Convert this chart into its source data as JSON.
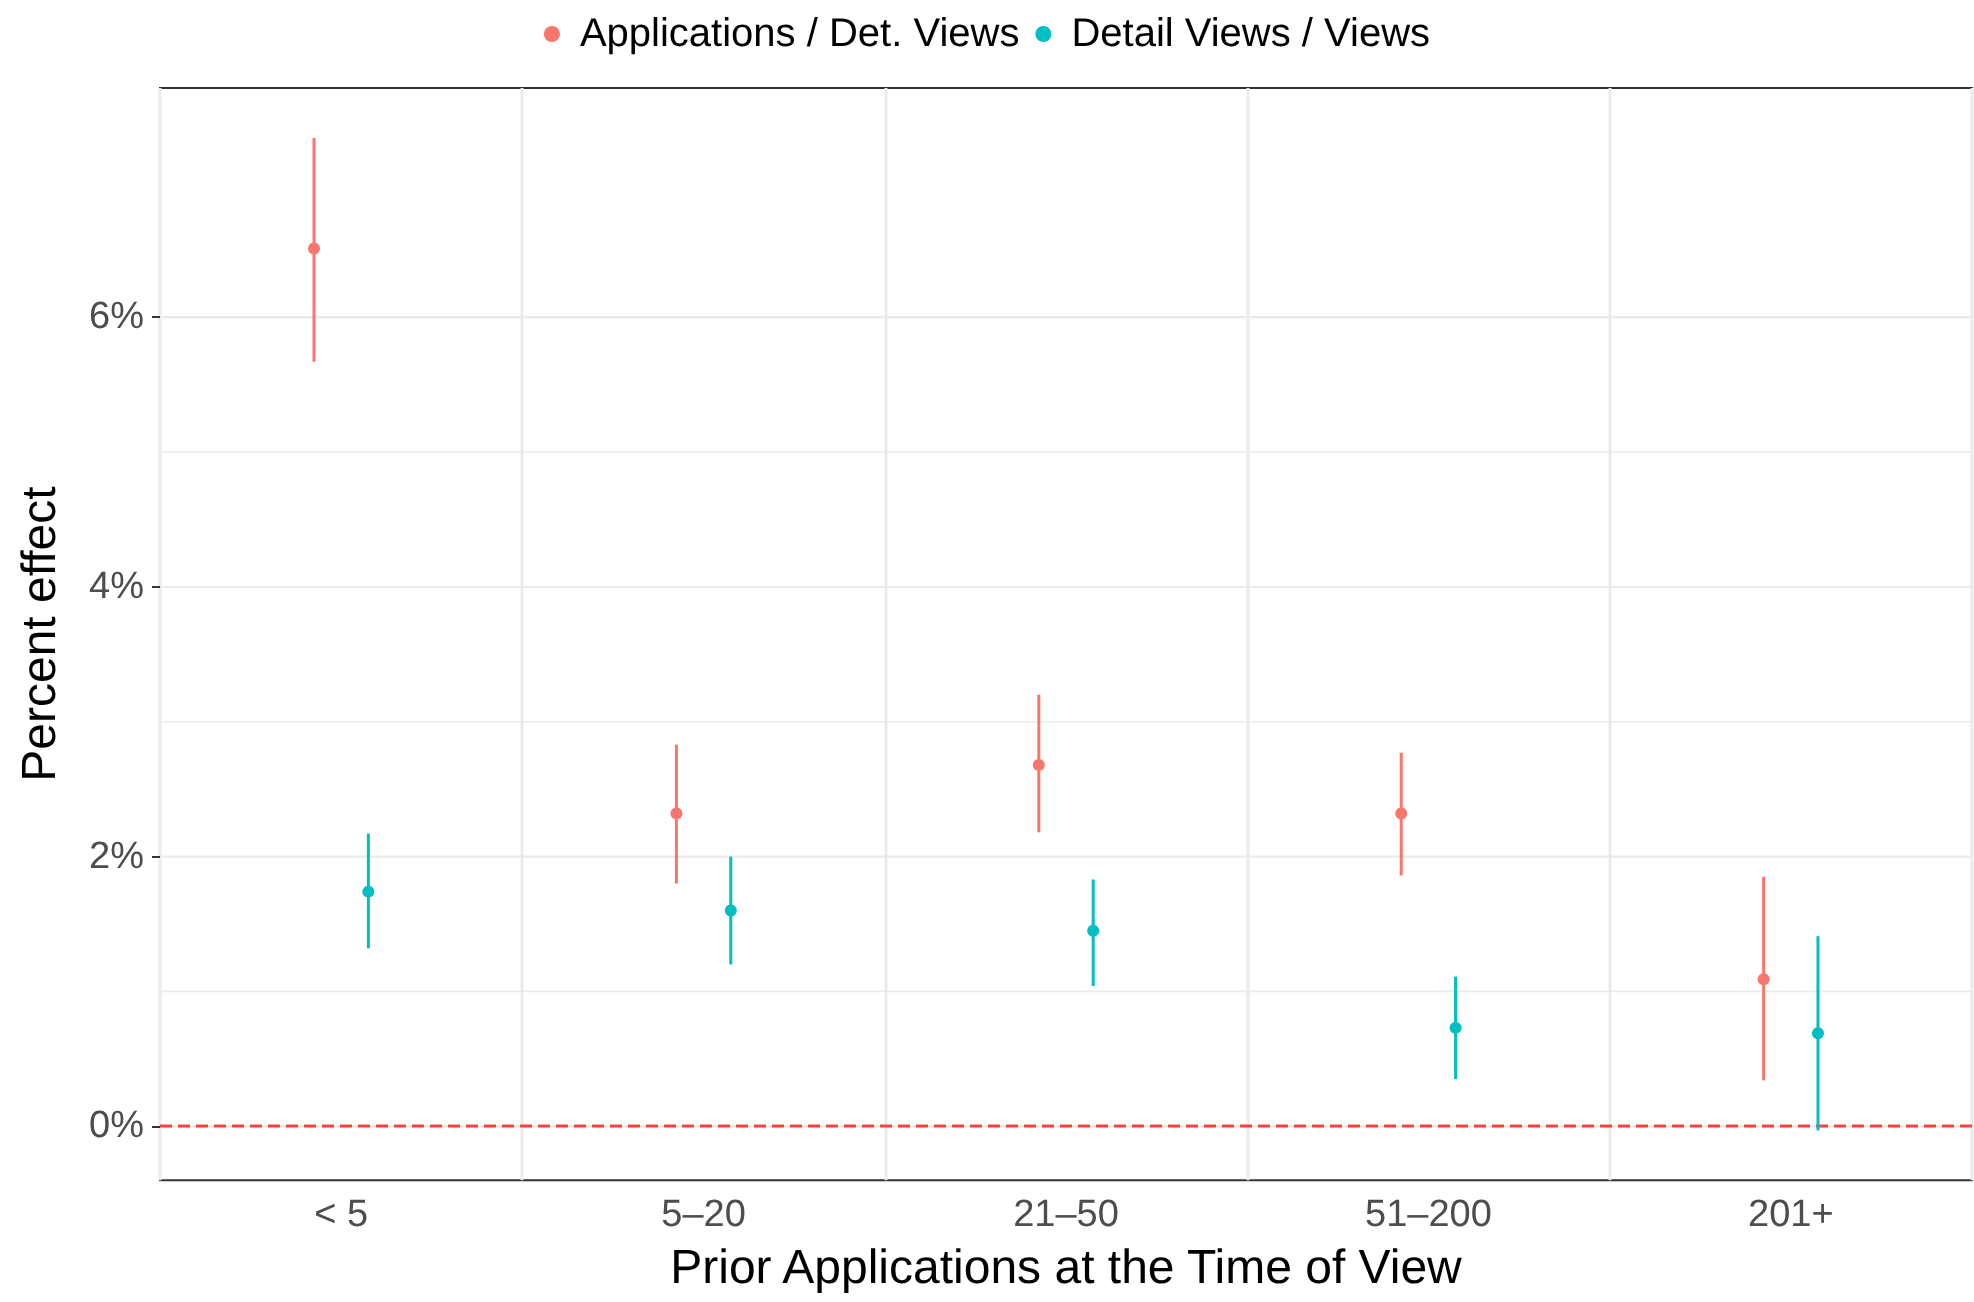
{
  "chart_data": {
    "type": "scatter",
    "xlabel": "Prior Applications at the Time of View",
    "ylabel": "Percent effect",
    "categories": [
      "< 5",
      "5–20",
      "21–50",
      "51–200",
      "201+"
    ],
    "series": [
      {
        "name": "Applications / Det. Views",
        "color": "#f8766d",
        "values": [
          6.51,
          2.32,
          2.68,
          2.32,
          1.09
        ],
        "errors": [
          [
            5.67,
            7.33
          ],
          [
            1.8,
            2.83
          ],
          [
            2.18,
            3.2
          ],
          [
            1.86,
            2.77
          ],
          [
            0.34,
            1.85
          ]
        ]
      },
      {
        "name": "Detail Views / Views",
        "color": "#00bfc4",
        "values": [
          1.74,
          1.6,
          1.45,
          0.73,
          0.69
        ],
        "errors": [
          [
            1.32,
            2.17
          ],
          [
            1.2,
            2.0
          ],
          [
            1.04,
            1.83
          ],
          [
            0.35,
            1.11
          ],
          [
            -0.03,
            1.41
          ]
        ]
      }
    ],
    "ylim": [
      -0.4,
      7.7
    ],
    "yticks": [
      {
        "value": 0,
        "label": "0%"
      },
      {
        "value": 2,
        "label": "2%"
      },
      {
        "value": 4,
        "label": "4%"
      },
      {
        "value": 6,
        "label": "6%"
      }
    ],
    "ref_lines": [
      {
        "axis": "y",
        "value": 0,
        "label": null,
        "color": "#ff4040",
        "line_style": "dashed"
      }
    ],
    "grid": true,
    "legend": "top",
    "marker": "circle"
  }
}
